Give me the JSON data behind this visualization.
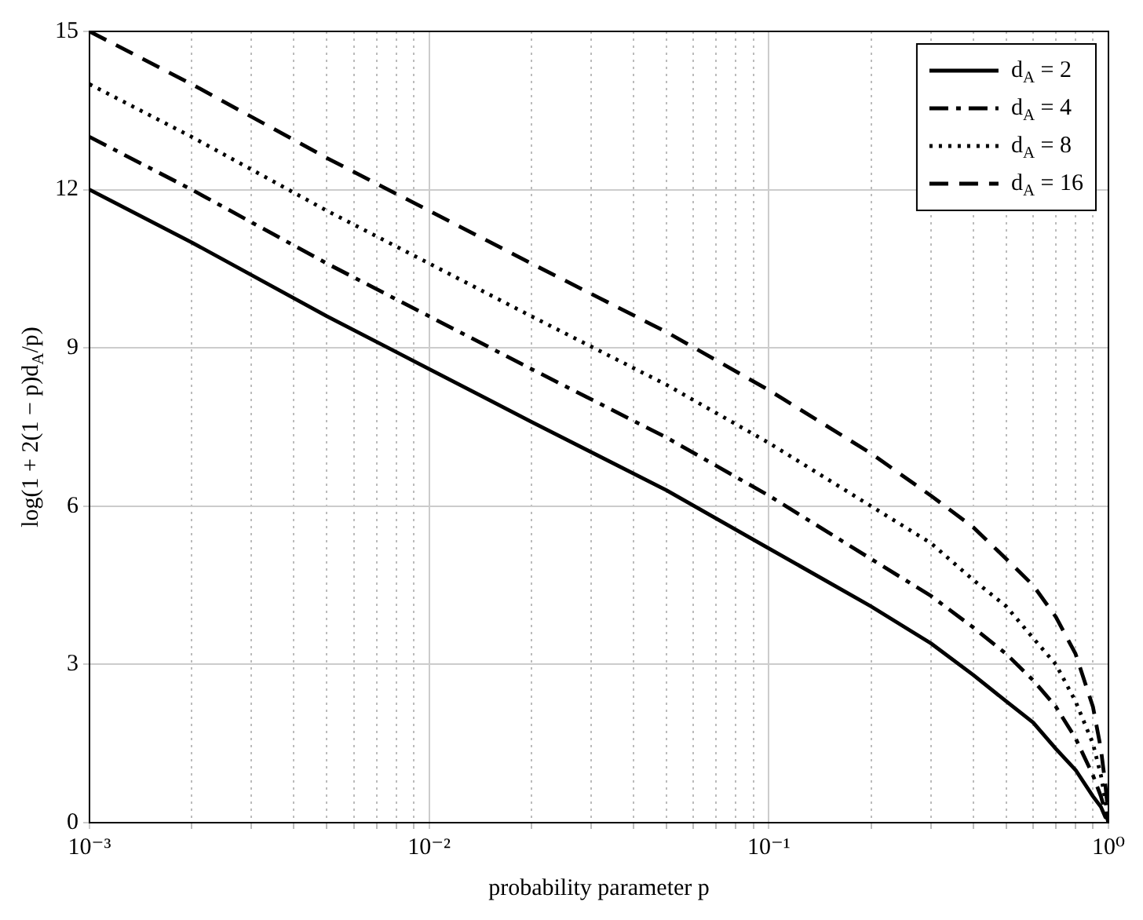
{
  "chart_data": {
    "type": "line",
    "xlabel": "probability parameter p",
    "ylabel": "log(1 + 2(1 − p)d$_{A}$/p)",
    "log": "x",
    "grid": true,
    "legend": "top right",
    "marker": "none",
    "x": [
      0.001,
      0.002,
      0.005,
      0.01,
      0.02,
      0.05,
      0.1,
      0.2,
      0.3,
      0.4,
      0.5,
      0.6,
      0.7,
      0.8,
      0.9,
      0.95,
      0.98,
      0.99,
      1
    ],
    "series": [
      {
        "name": "d$_{A}$ = 2",
        "color": "#000000",
        "line_style": "solid",
        "values": [
          12.0,
          11.0,
          9.6,
          8.6,
          7.6,
          6.3,
          5.2,
          4.1,
          3.4,
          2.8,
          2.3,
          1.9,
          1.4,
          1.0,
          0.5,
          0.3,
          0.1,
          0.1,
          0
        ]
      },
      {
        "name": "d$_{A}$ = 4",
        "color": "#000000",
        "line_style": "dashdot",
        "values": [
          13.0,
          12.0,
          10.6,
          9.6,
          8.6,
          7.3,
          6.2,
          5.0,
          4.3,
          3.7,
          3.2,
          2.7,
          2.2,
          1.6,
          0.9,
          0.5,
          0.2,
          0.1,
          0
        ]
      },
      {
        "name": "d$_{A}$ = 8",
        "color": "#000000",
        "line_style": "dotted",
        "values": [
          14.0,
          13.0,
          11.6,
          10.6,
          9.6,
          8.3,
          7.2,
          6.0,
          5.3,
          4.6,
          4.1,
          3.5,
          3.0,
          2.3,
          1.5,
          0.9,
          0.4,
          0.2,
          0
        ]
      },
      {
        "name": "d$_{A}$ = 16",
        "color": "#000000",
        "line_style": "dashed",
        "values": [
          15.0,
          14.0,
          12.6,
          11.6,
          10.6,
          9.3,
          8.2,
          7.0,
          6.2,
          5.6,
          5.0,
          4.5,
          3.9,
          3.2,
          2.2,
          1.4,
          0.7,
          0.4,
          0
        ]
      }
    ],
    "xlim": [
      0.001,
      1
    ],
    "xticks": [
      {
        "value": 0.001,
        "label": "10⁻³"
      },
      {
        "value": 0.002,
        "label": null
      },
      {
        "value": 0.003,
        "label": null
      },
      {
        "value": 0.004,
        "label": null
      },
      {
        "value": 0.005,
        "label": null
      },
      {
        "value": 0.006,
        "label": null
      },
      {
        "value": 0.007,
        "label": null
      },
      {
        "value": 0.008,
        "label": null
      },
      {
        "value": 0.009,
        "label": null
      },
      {
        "value": 0.01,
        "label": "10⁻²"
      },
      {
        "value": 0.02,
        "label": null
      },
      {
        "value": 0.03,
        "label": null
      },
      {
        "value": 0.04,
        "label": null
      },
      {
        "value": 0.05,
        "label": null
      },
      {
        "value": 0.06,
        "label": null
      },
      {
        "value": 0.07,
        "label": null
      },
      {
        "value": 0.08,
        "label": null
      },
      {
        "value": 0.09,
        "label": null
      },
      {
        "value": 0.1,
        "label": "10⁻¹"
      },
      {
        "value": 0.2,
        "label": null
      },
      {
        "value": 0.3,
        "label": null
      },
      {
        "value": 0.4,
        "label": null
      },
      {
        "value": 0.5,
        "label": null
      },
      {
        "value": 0.6,
        "label": null
      },
      {
        "value": 0.7,
        "label": null
      },
      {
        "value": 0.8,
        "label": null
      },
      {
        "value": 0.9,
        "label": null
      },
      {
        "value": 1,
        "label": "10⁰"
      }
    ],
    "ylim": [
      0,
      15
    ],
    "yticks": [
      0,
      3,
      6,
      9,
      12,
      15
    ]
  }
}
